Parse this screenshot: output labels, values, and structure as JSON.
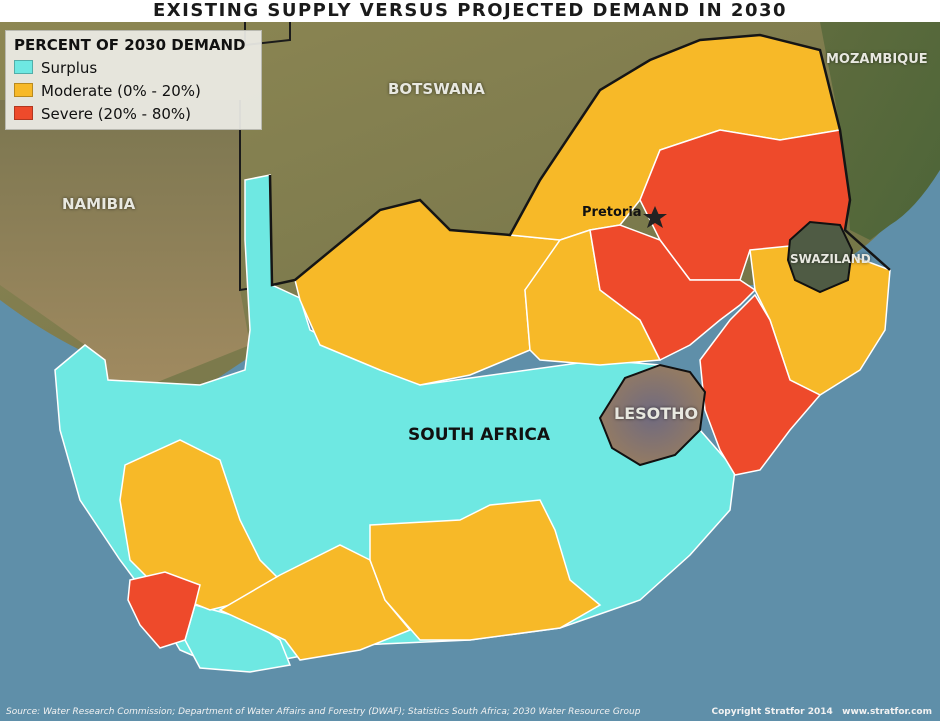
{
  "title": "EXISTING SUPPLY VERSUS PROJECTED DEMAND IN 2030",
  "legend": {
    "title": "PERCENT OF 2030 DEMAND",
    "items": [
      {
        "label": "Surplus",
        "color": "#6ee8e2"
      },
      {
        "label": "Moderate (0% - 20%)",
        "color": "#f7b928"
      },
      {
        "label": "Severe (20% - 80%)",
        "color": "#ee4a2b"
      }
    ]
  },
  "labels": {
    "botswana": "BOTSWANA",
    "namibia": "NAMIBIA",
    "mozambique": "MOZAMBIQUE",
    "swaziland": "SWAZILAND",
    "lesotho": "LESOTHO",
    "south_africa": "SOUTH AFRICA",
    "pretoria": "Pretoria"
  },
  "colors": {
    "ocean": "#5f8fa9",
    "land": "#8c8a55",
    "surplus": "#6ee8e2",
    "moderate": "#f7b928",
    "severe": "#ee4a2b",
    "lesotho": "#8a7a63",
    "swaziland": "#4f5b44"
  },
  "source": "Source: Water Research Commission; Department of Water Affairs and Forestry (DWAF); Statistics South Africa; 2030 Water Resource Group",
  "copyright": "Copyright Stratfor 2014",
  "website": "www.stratfor.com",
  "pretoria_icon": "star-icon"
}
